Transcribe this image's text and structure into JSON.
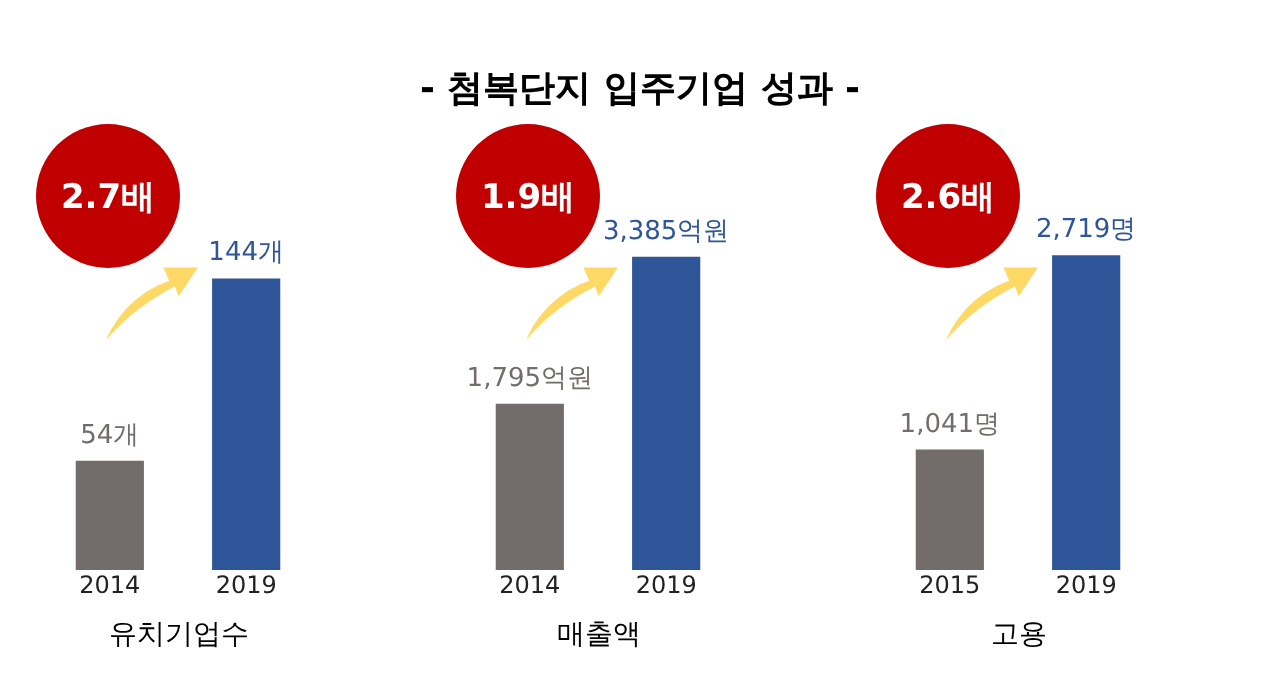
{
  "chart_data": [
    {
      "type": "bar",
      "categories": [
        "2014",
        "2019"
      ],
      "values": [
        54,
        144
      ],
      "colors": [
        "#726d6b",
        "#2e5597"
      ],
      "value_labels": [
        "54개",
        "144개"
      ],
      "xlabel": "유치기업수",
      "annotations": [
        "2.7배"
      ],
      "tick_labels": "x"
    },
    {
      "type": "bar",
      "title": "- 첨복단지 입주기업 성과 -",
      "categories": [
        "2014",
        "2019"
      ],
      "values": [
        1795,
        3385
      ],
      "colors": [
        "#726d6b",
        "#2e5597"
      ],
      "value_labels": [
        "1,795억원",
        "3,385억원"
      ],
      "xlabel": "매출액",
      "annotations": [
        "1.9배"
      ],
      "tick_labels": "x"
    },
    {
      "type": "bar",
      "categories": [
        "2015",
        "2019"
      ],
      "values": [
        1041,
        2719
      ],
      "colors": [
        "#726d6b",
        "#2e5597"
      ],
      "value_labels": [
        "1,041명",
        "2,719명"
      ],
      "xlabel": "고용",
      "annotations": [
        "2.6배"
      ],
      "tick_labels": "x"
    }
  ]
}
